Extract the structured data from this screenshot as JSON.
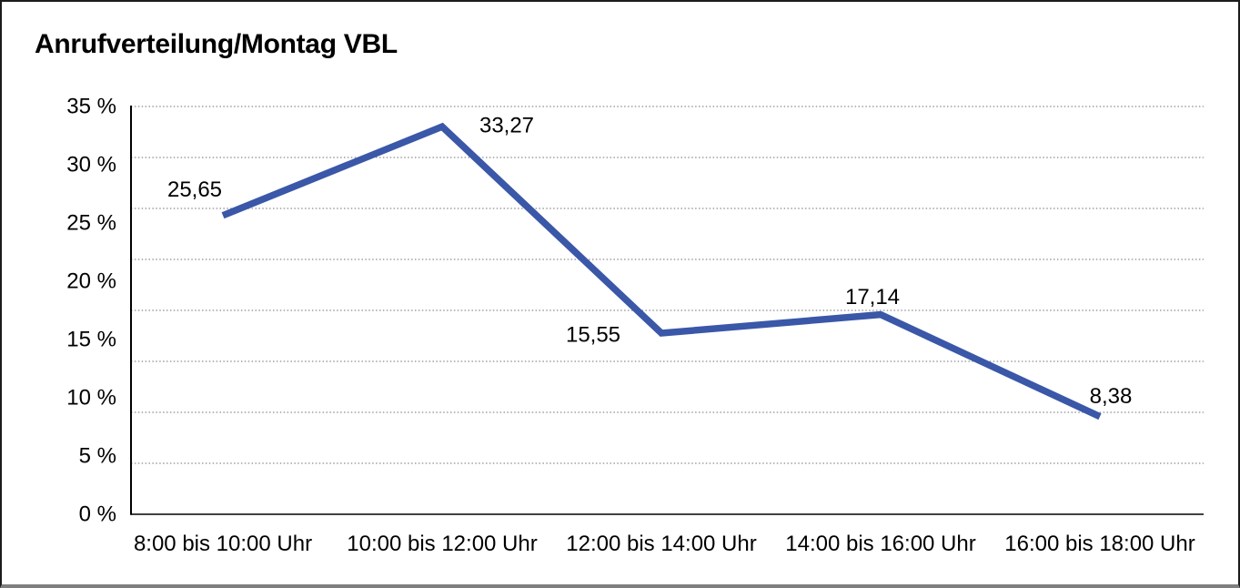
{
  "header": {
    "title": "Anrufverteilung/Montag VBL"
  },
  "chart_data": {
    "type": "line",
    "title": "Anrufverteilung/Montag VBL",
    "categories": [
      "8:00 bis 10:00 Uhr",
      "10:00 bis 12:00 Uhr",
      "12:00 bis 14:00 Uhr",
      "14:00 bis 16:00 Uhr",
      "16:00 bis 18:00 Uhr"
    ],
    "values": [
      25.65,
      33.27,
      15.55,
      17.14,
      8.38
    ],
    "point_labels": [
      "25,65",
      "33,27",
      "15,55",
      "17,14",
      "8,38"
    ],
    "ytick_labels": [
      "35 %",
      "30 %",
      "25 %",
      "20 %",
      "15 %",
      "10 %",
      "5 %",
      "0 %"
    ],
    "ylim": [
      0,
      35
    ],
    "xlabel": "",
    "ylabel": "",
    "legend": "none",
    "grid": "horizontal-dotted",
    "colors": {
      "line": "#3A57A8",
      "grid": "#8c8c8c",
      "axis": "#000000",
      "text": "#000000",
      "background": "#ffffff",
      "frame_border": "#1c1c1c",
      "frame_bottom": "#7f7f7f"
    }
  }
}
